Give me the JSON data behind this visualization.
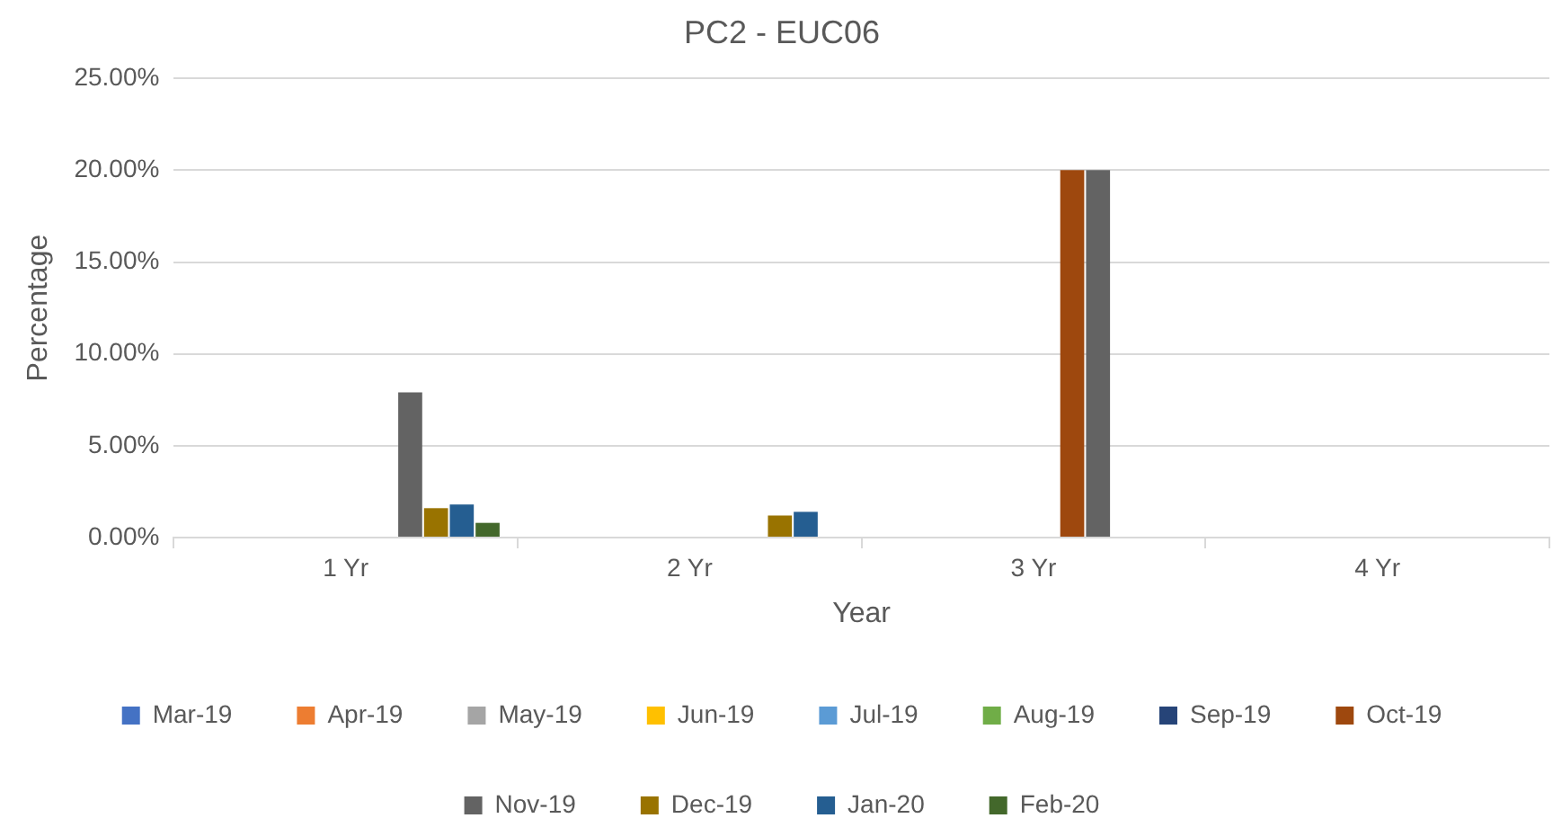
{
  "chart_data": {
    "type": "bar",
    "title": "PC2 - EUC06",
    "xlabel": "Year",
    "ylabel": "Percentage",
    "categories": [
      "1 Yr",
      "2 Yr",
      "3 Yr",
      "4 Yr"
    ],
    "series": [
      {
        "name": "Mar-19",
        "color": "#4472c4",
        "values": [
          0,
          0,
          0,
          0
        ]
      },
      {
        "name": "Apr-19",
        "color": "#ed7d31",
        "values": [
          0,
          0,
          0,
          0
        ]
      },
      {
        "name": "May-19",
        "color": "#a5a5a5",
        "values": [
          0,
          0,
          0,
          0
        ]
      },
      {
        "name": "Jun-19",
        "color": "#ffc000",
        "values": [
          0,
          0,
          0,
          0
        ]
      },
      {
        "name": "Jul-19",
        "color": "#5b9bd5",
        "values": [
          0,
          0,
          0,
          0
        ]
      },
      {
        "name": "Aug-19",
        "color": "#70ad47",
        "values": [
          0,
          0,
          0,
          0
        ]
      },
      {
        "name": "Sep-19",
        "color": "#264478",
        "values": [
          0,
          0,
          0,
          0
        ]
      },
      {
        "name": "Oct-19",
        "color": "#9e480e",
        "values": [
          0,
          0,
          20,
          0
        ]
      },
      {
        "name": "Nov-19",
        "color": "#636363",
        "values": [
          7.9,
          0,
          20,
          0
        ]
      },
      {
        "name": "Dec-19",
        "color": "#997300",
        "values": [
          1.6,
          1.2,
          0,
          0
        ]
      },
      {
        "name": "Jan-20",
        "color": "#255e91",
        "values": [
          1.8,
          1.4,
          0,
          0
        ]
      },
      {
        "name": "Feb-20",
        "color": "#43682b",
        "values": [
          0.8,
          0,
          0,
          0
        ]
      }
    ],
    "ylim": [
      0,
      25
    ],
    "yticks": [
      {
        "value": 0,
        "label": "0.00%"
      },
      {
        "value": 5,
        "label": "5.00%"
      },
      {
        "value": 10,
        "label": "10.00%"
      },
      {
        "value": 15,
        "label": "15.00%"
      },
      {
        "value": 20,
        "label": "20.00%"
      },
      {
        "value": 25,
        "label": "25.00%"
      }
    ],
    "grid": "y",
    "legend": "bottom"
  }
}
